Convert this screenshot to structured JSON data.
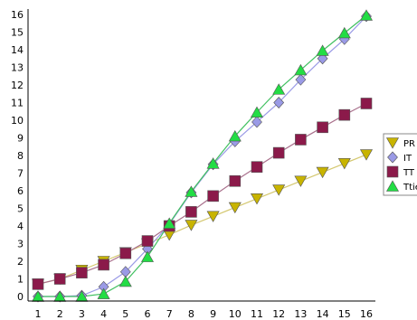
{
  "chart_data": {
    "type": "line",
    "x": [
      1,
      2,
      3,
      4,
      5,
      6,
      7,
      8,
      9,
      10,
      11,
      12,
      13,
      14,
      15,
      16
    ],
    "xlim": [
      1,
      16
    ],
    "ylim": [
      0,
      16
    ],
    "yticks": [
      0,
      1,
      2,
      3,
      4,
      5,
      6,
      7,
      8,
      9,
      10,
      11,
      12,
      13,
      14,
      15,
      16
    ],
    "xticks": [
      1,
      2,
      3,
      4,
      5,
      6,
      7,
      8,
      9,
      10,
      11,
      12,
      13,
      14,
      15,
      16
    ],
    "grid": false,
    "legend": "right",
    "series": [
      {
        "name": "PR",
        "marker": "triangle-down",
        "color": "#c8b400",
        "line_color": "#d4c870",
        "values": [
          0.7,
          1.0,
          1.5,
          2.0,
          2.5,
          3.0,
          3.5,
          4.05,
          4.55,
          5.05,
          5.55,
          6.05,
          6.55,
          7.05,
          7.55,
          8.05
        ]
      },
      {
        "name": "IT",
        "marker": "diamond",
        "color": "#9a9ae6",
        "line_color": "#9a9ae6",
        "values": [
          0.0,
          0.0,
          0.05,
          0.55,
          1.4,
          2.7,
          4.1,
          5.9,
          7.5,
          8.8,
          9.9,
          11.0,
          12.3,
          13.5,
          14.6,
          15.9
        ]
      },
      {
        "name": "TT",
        "marker": "square",
        "color": "#8b1a4a",
        "line_color": "#a9708c",
        "values": [
          0.7,
          1.0,
          1.35,
          1.8,
          2.45,
          3.15,
          4.0,
          4.8,
          5.7,
          6.55,
          7.35,
          8.15,
          8.9,
          9.6,
          10.3,
          10.95
        ]
      },
      {
        "name": "Ttie",
        "marker": "triangle-up",
        "color": "#22dd44",
        "line_color": "#40c060",
        "values": [
          0.0,
          0.0,
          0.0,
          0.15,
          0.85,
          2.25,
          4.15,
          5.95,
          7.55,
          9.1,
          10.45,
          11.75,
          12.85,
          13.95,
          14.95,
          15.95
        ]
      }
    ]
  }
}
